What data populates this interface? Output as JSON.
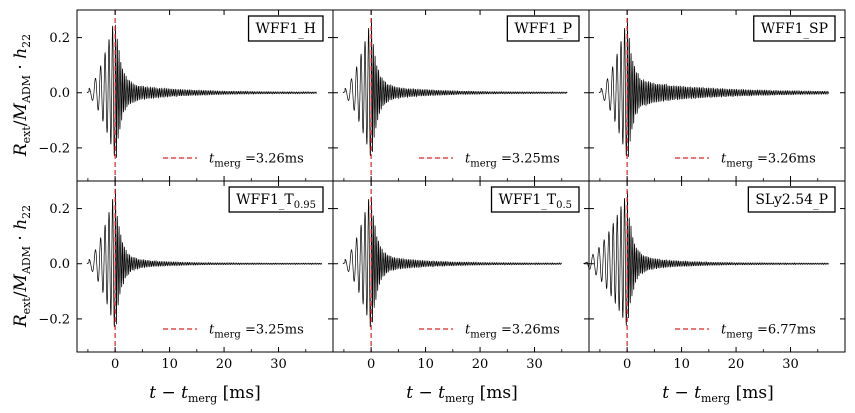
{
  "chart_data": {
    "type": "line",
    "layout": "2x3 grid of panels with shared axes",
    "xlabel": "t − t_merg [ms]",
    "ylabel": "R_ext/M_ADM · h_22",
    "xlim": [
      -7,
      40
    ],
    "ylim": [
      -0.32,
      0.3
    ],
    "xticks": [
      0,
      10,
      20,
      30
    ],
    "yticks": [
      -0.2,
      0.0,
      0.2
    ],
    "legend_entry": "t_merg =",
    "legend_position": "lower-right",
    "merger_line_color": "#d62728",
    "trace_color": "#000000",
    "panels": [
      {
        "label": "WFF1_H",
        "label_main": "WFF1",
        "label_suffix": "H",
        "t_merg": "3.26ms",
        "waveform": {
          "t_start": -5.2,
          "t_end": 37,
          "peak_pos": 0.28,
          "peak_neg": -0.24,
          "pre_cycles": 6,
          "post_tail_amp": 0.035,
          "tail_decay_ms": 9
        }
      },
      {
        "label": "WFF1_P",
        "label_main": "WFF1",
        "label_suffix": "P",
        "t_merg": "3.25ms",
        "waveform": {
          "t_start": -5.2,
          "t_end": 36,
          "peak_pos": 0.27,
          "peak_neg": -0.24,
          "pre_cycles": 6,
          "post_tail_amp": 0.03,
          "tail_decay_ms": 8
        }
      },
      {
        "label": "WFF1_SP",
        "label_main": "WFF1",
        "label_suffix": "SP",
        "t_merg": "3.26ms",
        "waveform": {
          "t_start": -5.2,
          "t_end": 37,
          "peak_pos": 0.27,
          "peak_neg": -0.24,
          "pre_cycles": 6,
          "post_tail_amp": 0.045,
          "tail_decay_ms": 13
        }
      },
      {
        "label": "WFF1_T0.95",
        "label_main": "WFF1",
        "label_suffix": "T",
        "label_subscript": "0.95",
        "t_merg": "3.25ms",
        "waveform": {
          "t_start": -5.2,
          "t_end": 38,
          "peak_pos": 0.27,
          "peak_neg": -0.24,
          "pre_cycles": 6,
          "post_tail_amp": 0.025,
          "tail_decay_ms": 6
        }
      },
      {
        "label": "WFF1_T0.5",
        "label_main": "WFF1",
        "label_suffix": "T",
        "label_subscript": "0.5",
        "t_merg": "3.26ms",
        "waveform": {
          "t_start": -5.2,
          "t_end": 35,
          "peak_pos": 0.27,
          "peak_neg": -0.24,
          "pre_cycles": 6,
          "post_tail_amp": 0.03,
          "tail_decay_ms": 8
        }
      },
      {
        "label": "SLy2.54_P",
        "label_main": "SLy2.54",
        "label_suffix": "P",
        "t_merg": "6.77ms",
        "waveform": {
          "t_start": -8,
          "t_end": 37,
          "peak_pos": 0.26,
          "peak_neg": -0.23,
          "pre_cycles": 9,
          "post_tail_amp": 0.03,
          "tail_decay_ms": 7
        }
      }
    ]
  }
}
